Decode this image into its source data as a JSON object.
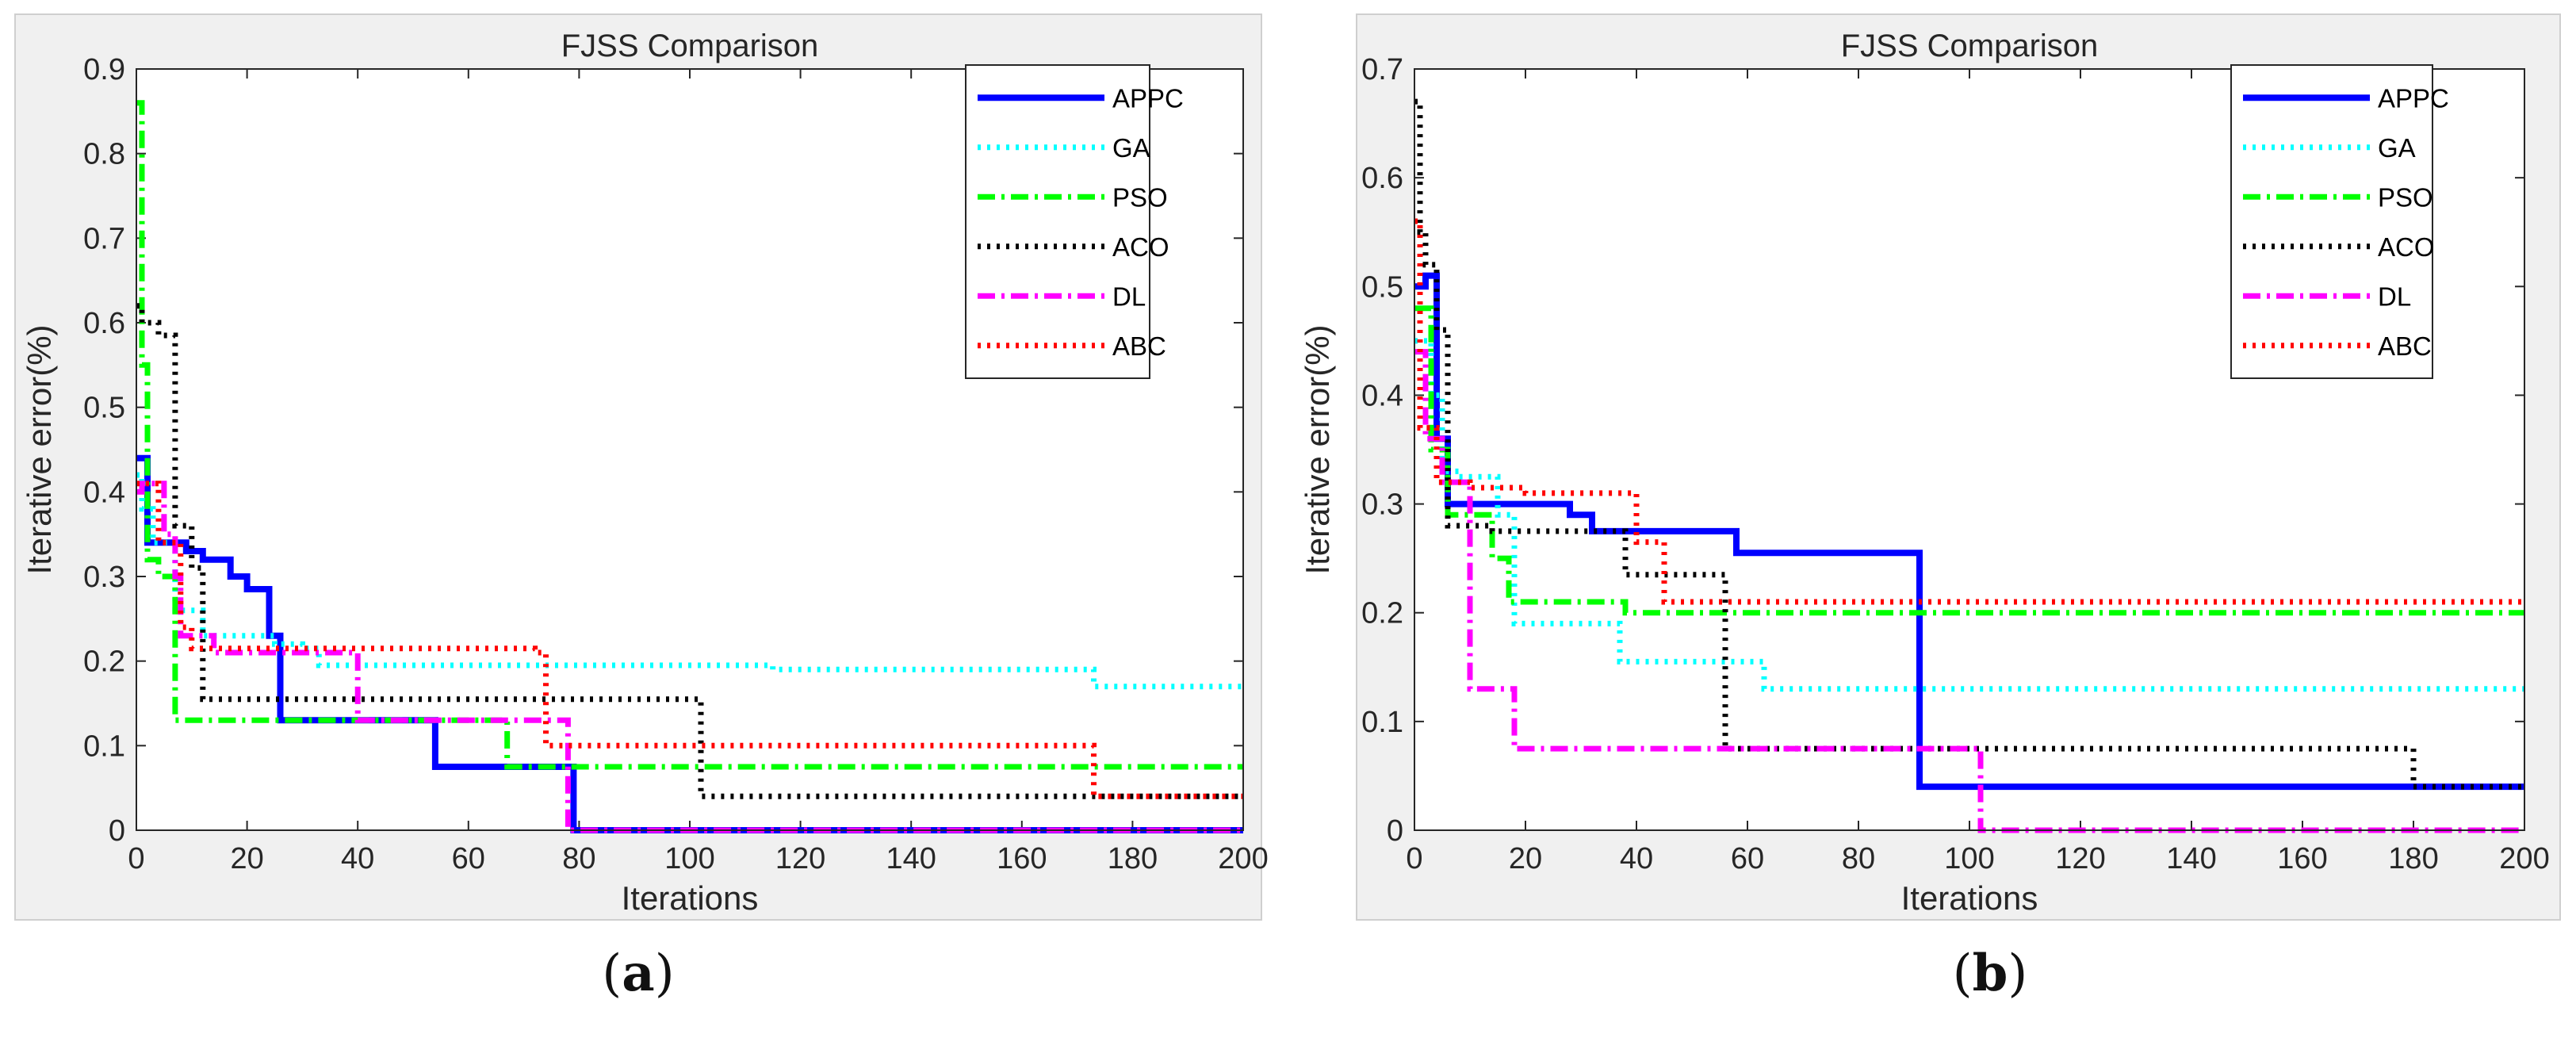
{
  "figure": {
    "caption_a": "a",
    "caption_b": "b"
  },
  "colors": {
    "APPC": "#0000ff",
    "GA": "#00ffff",
    "PSO": "#00ff00",
    "ACO": "#000000",
    "DL": "#ff00ff",
    "ABC": "#ff0000"
  },
  "chart_data": [
    {
      "type": "line",
      "title": "FJSS Comparison",
      "xlabel": "Iterations",
      "ylabel": "Iterative error(%)",
      "xlim": [
        0,
        200
      ],
      "ylim": [
        0,
        0.9
      ],
      "xticks": [
        0,
        20,
        40,
        60,
        80,
        100,
        120,
        140,
        160,
        180,
        200
      ],
      "yticks": [
        0,
        0.1,
        0.2,
        0.3,
        0.4,
        0.5,
        0.6,
        0.7,
        0.8,
        0.9
      ],
      "legend": [
        "APPC",
        "GA",
        "PSO",
        "ACO",
        "DL",
        "ABC"
      ],
      "legend_position": "top-right",
      "series": [
        {
          "name": "APPC",
          "style": "solid",
          "points": [
            [
              0,
              0.44
            ],
            [
              2,
              0.44
            ],
            [
              2,
              0.34
            ],
            [
              9,
              0.34
            ],
            [
              9,
              0.33
            ],
            [
              12,
              0.33
            ],
            [
              12,
              0.32
            ],
            [
              17,
              0.32
            ],
            [
              17,
              0.3
            ],
            [
              20,
              0.3
            ],
            [
              20,
              0.285
            ],
            [
              24,
              0.285
            ],
            [
              24,
              0.23
            ],
            [
              26,
              0.23
            ],
            [
              26,
              0.13
            ],
            [
              54,
              0.13
            ],
            [
              54,
              0.075
            ],
            [
              67,
              0.075
            ],
            [
              67,
              0.075
            ],
            [
              79,
              0.075
            ],
            [
              79,
              0.0
            ],
            [
              200,
              0.0
            ]
          ]
        },
        {
          "name": "GA",
          "style": "dotted",
          "points": [
            [
              0,
              0.42
            ],
            [
              1,
              0.42
            ],
            [
              1,
              0.38
            ],
            [
              3,
              0.38
            ],
            [
              3,
              0.34
            ],
            [
              7,
              0.34
            ],
            [
              7,
              0.26
            ],
            [
              12,
              0.26
            ],
            [
              12,
              0.23
            ],
            [
              25,
              0.23
            ],
            [
              25,
              0.22
            ],
            [
              30,
              0.22
            ],
            [
              30,
              0.215
            ],
            [
              33,
              0.215
            ],
            [
              33,
              0.195
            ],
            [
              115,
              0.195
            ],
            [
              115,
              0.19
            ],
            [
              173,
              0.19
            ],
            [
              173,
              0.17
            ],
            [
              200,
              0.17
            ]
          ]
        },
        {
          "name": "PSO",
          "style": "dashdot",
          "points": [
            [
              0,
              0.86
            ],
            [
              1,
              0.86
            ],
            [
              1,
              0.55
            ],
            [
              2,
              0.55
            ],
            [
              2,
              0.32
            ],
            [
              4,
              0.32
            ],
            [
              4,
              0.3
            ],
            [
              7,
              0.3
            ],
            [
              7,
              0.13
            ],
            [
              67,
              0.13
            ],
            [
              67,
              0.075
            ],
            [
              200,
              0.075
            ]
          ]
        },
        {
          "name": "ACO",
          "style": "dotted",
          "points": [
            [
              0,
              0.62
            ],
            [
              1,
              0.62
            ],
            [
              1,
              0.6
            ],
            [
              4,
              0.6
            ],
            [
              4,
              0.585
            ],
            [
              7,
              0.585
            ],
            [
              7,
              0.36
            ],
            [
              10,
              0.36
            ],
            [
              10,
              0.31
            ],
            [
              12,
              0.31
            ],
            [
              12,
              0.155
            ],
            [
              102,
              0.155
            ],
            [
              102,
              0.04
            ],
            [
              200,
              0.04
            ]
          ]
        },
        {
          "name": "DL",
          "style": "dashdot",
          "points": [
            [
              0,
              0.4
            ],
            [
              1,
              0.4
            ],
            [
              1,
              0.41
            ],
            [
              5,
              0.41
            ],
            [
              5,
              0.35
            ],
            [
              7,
              0.35
            ],
            [
              7,
              0.3
            ],
            [
              8,
              0.3
            ],
            [
              8,
              0.23
            ],
            [
              14,
              0.23
            ],
            [
              14,
              0.21
            ],
            [
              40,
              0.21
            ],
            [
              40,
              0.13
            ],
            [
              78,
              0.13
            ],
            [
              78,
              0.0
            ],
            [
              200,
              0.0
            ]
          ]
        },
        {
          "name": "ABC",
          "style": "dotted",
          "points": [
            [
              0,
              0.41
            ],
            [
              4,
              0.41
            ],
            [
              4,
              0.34
            ],
            [
              8,
              0.34
            ],
            [
              8,
              0.24
            ],
            [
              10,
              0.24
            ],
            [
              10,
              0.215
            ],
            [
              72,
              0.215
            ],
            [
              72,
              0.21
            ],
            [
              74,
              0.21
            ],
            [
              74,
              0.1
            ],
            [
              173,
              0.1
            ],
            [
              173,
              0.04
            ],
            [
              200,
              0.04
            ]
          ]
        }
      ]
    },
    {
      "type": "line",
      "title": "FJSS Comparison",
      "xlabel": "Iterations",
      "ylabel": "Iterative error(%)",
      "xlim": [
        0,
        200
      ],
      "ylim": [
        0,
        0.7
      ],
      "xticks": [
        0,
        20,
        40,
        60,
        80,
        100,
        120,
        140,
        160,
        180,
        200
      ],
      "yticks": [
        0,
        0.1,
        0.2,
        0.3,
        0.4,
        0.5,
        0.6,
        0.7
      ],
      "legend": [
        "APPC",
        "GA",
        "PSO",
        "ACO",
        "DL",
        "ABC"
      ],
      "legend_position": "top-right",
      "series": [
        {
          "name": "APPC",
          "style": "solid",
          "points": [
            [
              0,
              0.5
            ],
            [
              2,
              0.5
            ],
            [
              2,
              0.51
            ],
            [
              4,
              0.51
            ],
            [
              4,
              0.36
            ],
            [
              6,
              0.36
            ],
            [
              6,
              0.3
            ],
            [
              28,
              0.3
            ],
            [
              28,
              0.29
            ],
            [
              32,
              0.29
            ],
            [
              32,
              0.275
            ],
            [
              58,
              0.275
            ],
            [
              58,
              0.255
            ],
            [
              91,
              0.255
            ],
            [
              91,
              0.04
            ],
            [
              200,
              0.04
            ]
          ]
        },
        {
          "name": "GA",
          "style": "dotted",
          "points": [
            [
              0,
              0.45
            ],
            [
              3,
              0.45
            ],
            [
              3,
              0.4
            ],
            [
              5,
              0.4
            ],
            [
              5,
              0.33
            ],
            [
              8,
              0.33
            ],
            [
              8,
              0.325
            ],
            [
              15,
              0.325
            ],
            [
              15,
              0.29
            ],
            [
              18,
              0.29
            ],
            [
              18,
              0.19
            ],
            [
              37,
              0.19
            ],
            [
              37,
              0.155
            ],
            [
              63,
              0.155
            ],
            [
              63,
              0.13
            ],
            [
              200,
              0.13
            ]
          ]
        },
        {
          "name": "PSO",
          "style": "dashdot",
          "points": [
            [
              0,
              0.48
            ],
            [
              3,
              0.48
            ],
            [
              3,
              0.35
            ],
            [
              6,
              0.35
            ],
            [
              6,
              0.29
            ],
            [
              14,
              0.29
            ],
            [
              14,
              0.25
            ],
            [
              17,
              0.25
            ],
            [
              17,
              0.21
            ],
            [
              38,
              0.21
            ],
            [
              38,
              0.2
            ],
            [
              200,
              0.2
            ]
          ]
        },
        {
          "name": "ACO",
          "style": "dotted",
          "points": [
            [
              0,
              0.67
            ],
            [
              1,
              0.67
            ],
            [
              1,
              0.55
            ],
            [
              2,
              0.55
            ],
            [
              2,
              0.52
            ],
            [
              4,
              0.52
            ],
            [
              4,
              0.46
            ],
            [
              6,
              0.46
            ],
            [
              6,
              0.28
            ],
            [
              14,
              0.28
            ],
            [
              14,
              0.275
            ],
            [
              38,
              0.275
            ],
            [
              38,
              0.235
            ],
            [
              56,
              0.235
            ],
            [
              56,
              0.075
            ],
            [
              180,
              0.075
            ],
            [
              180,
              0.04
            ],
            [
              200,
              0.04
            ]
          ]
        },
        {
          "name": "DL",
          "style": "dashdot",
          "points": [
            [
              0,
              0.44
            ],
            [
              2,
              0.44
            ],
            [
              2,
              0.36
            ],
            [
              5,
              0.36
            ],
            [
              5,
              0.32
            ],
            [
              10,
              0.32
            ],
            [
              10,
              0.13
            ],
            [
              18,
              0.13
            ],
            [
              18,
              0.075
            ],
            [
              102,
              0.075
            ],
            [
              102,
              0.0
            ],
            [
              200,
              0.0
            ]
          ]
        },
        {
          "name": "ABC",
          "style": "dotted",
          "points": [
            [
              0,
              0.56
            ],
            [
              1,
              0.56
            ],
            [
              1,
              0.37
            ],
            [
              4,
              0.37
            ],
            [
              4,
              0.32
            ],
            [
              10,
              0.32
            ],
            [
              10,
              0.315
            ],
            [
              20,
              0.315
            ],
            [
              20,
              0.31
            ],
            [
              40,
              0.31
            ],
            [
              40,
              0.265
            ],
            [
              45,
              0.265
            ],
            [
              45,
              0.21
            ],
            [
              200,
              0.21
            ]
          ]
        }
      ]
    }
  ]
}
